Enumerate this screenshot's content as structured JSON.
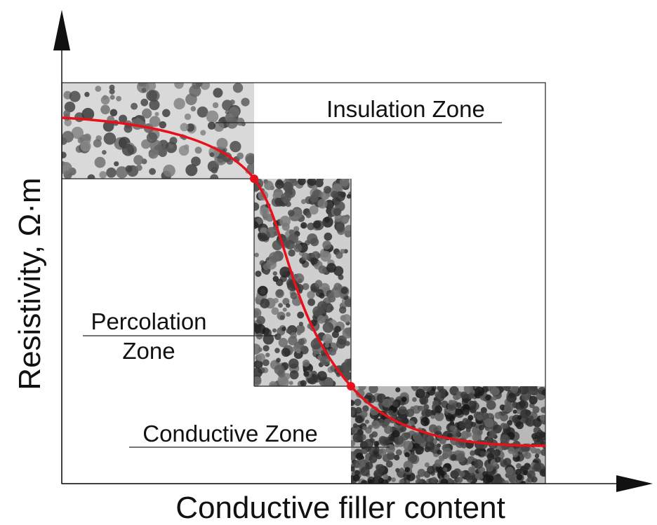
{
  "axes": {
    "y_label": "Resistivity, Ω·m",
    "x_label": "Conductive filler content"
  },
  "zones": {
    "insulation": "Insulation Zone",
    "percolation": [
      "Percolation",
      "Zone"
    ],
    "conductive": "Conductive Zone"
  }
}
